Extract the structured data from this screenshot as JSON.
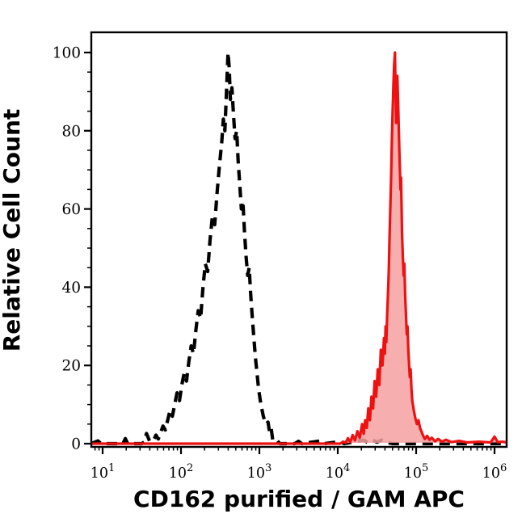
{
  "colors": {
    "background": "#ffffff",
    "axis": "#000000",
    "dashed_series": "#000000",
    "red_stroke": "#ee1111",
    "red_fill": "#f5a0a0"
  },
  "chart_data": {
    "type": "area",
    "subtype": "flow-cytometry-overlay-histogram",
    "title": "",
    "xlabel": "CD162 purified / GAM APC",
    "ylabel": "Relative Cell Count",
    "x_scale": "log10",
    "x_ticks_exponents": [
      1,
      2,
      3,
      4,
      5,
      6
    ],
    "x_tick_base": "10",
    "x_range_log10": [
      0.855,
      6.155
    ],
    "y_ticks": [
      0,
      20,
      40,
      60,
      80,
      100
    ],
    "y_tick_labels": [
      "0",
      "20",
      "40",
      "60",
      "80",
      "100"
    ],
    "y_minor_step": 5,
    "y_range": [
      0,
      105
    ],
    "grid": "off",
    "legend": "none",
    "series": [
      {
        "id": "control-dashed",
        "name": "negative control (black dashed histogram)",
        "line_style": "dashed",
        "color": "#000000",
        "fill": "none",
        "peak_x_approx": 400,
        "peak_height": 100,
        "points": [
          [
            0.855,
            0
          ],
          [
            0.94,
            0.7
          ],
          [
            0.98,
            0
          ],
          [
            1.26,
            0
          ],
          [
            1.29,
            1.3
          ],
          [
            1.32,
            0
          ],
          [
            1.5,
            0
          ],
          [
            1.53,
            0.4
          ],
          [
            1.56,
            2.6
          ],
          [
            1.6,
            0.6
          ],
          [
            1.65,
            0.8
          ],
          [
            1.68,
            2.2
          ],
          [
            1.71,
            1.2
          ],
          [
            1.74,
            2.8
          ],
          [
            1.77,
            4.5
          ],
          [
            1.8,
            3.5
          ],
          [
            1.83,
            6
          ],
          [
            1.86,
            8.5
          ],
          [
            1.89,
            7
          ],
          [
            1.92,
            10
          ],
          [
            1.95,
            13
          ],
          [
            1.98,
            11
          ],
          [
            2.01,
            15
          ],
          [
            2.04,
            18
          ],
          [
            2.07,
            16
          ],
          [
            2.1,
            21
          ],
          [
            2.13,
            25
          ],
          [
            2.16,
            23
          ],
          [
            2.19,
            29
          ],
          [
            2.22,
            34
          ],
          [
            2.25,
            32
          ],
          [
            2.28,
            40
          ],
          [
            2.31,
            46
          ],
          [
            2.34,
            44
          ],
          [
            2.37,
            52
          ],
          [
            2.4,
            58
          ],
          [
            2.43,
            56
          ],
          [
            2.46,
            64
          ],
          [
            2.49,
            71
          ],
          [
            2.52,
            77
          ],
          [
            2.54,
            83
          ],
          [
            2.56,
            80
          ],
          [
            2.58,
            90
          ],
          [
            2.6,
            100
          ],
          [
            2.615,
            96
          ],
          [
            2.63,
            88
          ],
          [
            2.65,
            91
          ],
          [
            2.67,
            84
          ],
          [
            2.69,
            78
          ],
          [
            2.71,
            80
          ],
          [
            2.73,
            72
          ],
          [
            2.75,
            66
          ],
          [
            2.77,
            60
          ],
          [
            2.79,
            62
          ],
          [
            2.81,
            54
          ],
          [
            2.83,
            48
          ],
          [
            2.85,
            43
          ],
          [
            2.87,
            45
          ],
          [
            2.89,
            38
          ],
          [
            2.91,
            32
          ],
          [
            2.93,
            27
          ],
          [
            2.95,
            22
          ],
          [
            2.97,
            18
          ],
          [
            2.99,
            14
          ],
          [
            3.02,
            10
          ],
          [
            3.05,
            7
          ],
          [
            3.08,
            5
          ],
          [
            3.11,
            5.5
          ],
          [
            3.13,
            3
          ],
          [
            3.15,
            4
          ],
          [
            3.17,
            1
          ],
          [
            3.2,
            0.4
          ],
          [
            3.23,
            0.7
          ],
          [
            3.26,
            0
          ],
          [
            3.45,
            0
          ],
          [
            3.5,
            0.6
          ],
          [
            3.54,
            0
          ],
          [
            3.78,
            0.7
          ],
          [
            3.83,
            0
          ],
          [
            3.98,
            0.4
          ],
          [
            4.03,
            0.6
          ],
          [
            4.08,
            0
          ],
          [
            4.33,
            0.9
          ],
          [
            4.38,
            0.3
          ],
          [
            4.44,
            1.0
          ],
          [
            4.5,
            0.4
          ],
          [
            4.56,
            0.9
          ],
          [
            4.62,
            0.3
          ],
          [
            4.7,
            0
          ],
          [
            6.155,
            0
          ]
        ]
      },
      {
        "id": "stained-red",
        "name": "CD162 purified / GAM APC stained (red filled histogram)",
        "line_style": "solid",
        "color": "#ee1111",
        "fill": "#f5a0a0",
        "peak_x_approx": 54000,
        "peak_height": 100,
        "points": [
          [
            0.855,
            0
          ],
          [
            4.03,
            0
          ],
          [
            4.07,
            0.5
          ],
          [
            4.1,
            0.2
          ],
          [
            4.13,
            1.4
          ],
          [
            4.16,
            0.4
          ],
          [
            4.19,
            2.2
          ],
          [
            4.22,
            0.8
          ],
          [
            4.25,
            3.2
          ],
          [
            4.28,
            1.5
          ],
          [
            4.31,
            5
          ],
          [
            4.33,
            2.5
          ],
          [
            4.35,
            6
          ],
          [
            4.37,
            4
          ],
          [
            4.39,
            9
          ],
          [
            4.41,
            6
          ],
          [
            4.43,
            12
          ],
          [
            4.45,
            9
          ],
          [
            4.47,
            16
          ],
          [
            4.49,
            12
          ],
          [
            4.51,
            19
          ],
          [
            4.53,
            15
          ],
          [
            4.55,
            24
          ],
          [
            4.57,
            20
          ],
          [
            4.59,
            27
          ],
          [
            4.6,
            23
          ],
          [
            4.61,
            30
          ],
          [
            4.62,
            26
          ],
          [
            4.63,
            33
          ],
          [
            4.64,
            38
          ],
          [
            4.65,
            44
          ],
          [
            4.66,
            52
          ],
          [
            4.67,
            60
          ],
          [
            4.68,
            68
          ],
          [
            4.69,
            77
          ],
          [
            4.7,
            85
          ],
          [
            4.71,
            92
          ],
          [
            4.72,
            97
          ],
          [
            4.73,
            100
          ],
          [
            4.737,
            90
          ],
          [
            4.744,
            82
          ],
          [
            4.75,
            87
          ],
          [
            4.76,
            94
          ],
          [
            4.77,
            87
          ],
          [
            4.78,
            79
          ],
          [
            4.79,
            72
          ],
          [
            4.8,
            65
          ],
          [
            4.807,
            68
          ],
          [
            4.815,
            59
          ],
          [
            4.82,
            54
          ],
          [
            4.83,
            48
          ],
          [
            4.84,
            43
          ],
          [
            4.85,
            46
          ],
          [
            4.86,
            38
          ],
          [
            4.87,
            33
          ],
          [
            4.88,
            28
          ],
          [
            4.89,
            30
          ],
          [
            4.9,
            24
          ],
          [
            4.91,
            20
          ],
          [
            4.92,
            17
          ],
          [
            4.93,
            19
          ],
          [
            4.94,
            14
          ],
          [
            4.95,
            11
          ],
          [
            4.97,
            8.5
          ],
          [
            4.99,
            6.5
          ],
          [
            5.01,
            5
          ],
          [
            5.03,
            6
          ],
          [
            5.05,
            4
          ],
          [
            5.07,
            3
          ],
          [
            5.09,
            2
          ],
          [
            5.11,
            1.2
          ],
          [
            5.14,
            2
          ],
          [
            5.17,
            1
          ],
          [
            5.2,
            1.5
          ],
          [
            5.24,
            0.6
          ],
          [
            5.28,
            1.2
          ],
          [
            5.33,
            0.5
          ],
          [
            5.38,
            1
          ],
          [
            5.45,
            0.4
          ],
          [
            5.55,
            0.7
          ],
          [
            5.65,
            0.3
          ],
          [
            5.8,
            0.5
          ],
          [
            5.95,
            0.3
          ],
          [
            6.0,
            1.8
          ],
          [
            6.04,
            0.4
          ],
          [
            6.1,
            0.5
          ],
          [
            6.155,
            0.3
          ]
        ]
      }
    ]
  }
}
